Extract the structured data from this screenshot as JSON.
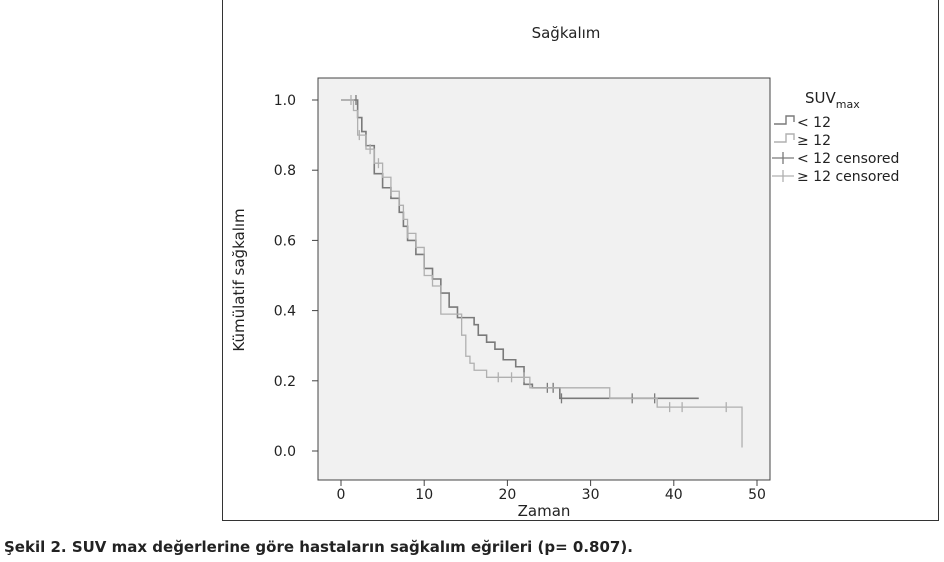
{
  "chart_data": {
    "type": "line",
    "subtype": "kaplan-meier",
    "title": "Sağkalım",
    "xlabel": "Zaman",
    "ylabel": "Kümülatif sağkalım",
    "xlim": [
      0,
      50
    ],
    "ylim": [
      0,
      1.0
    ],
    "xticks": [
      "0",
      "10",
      "20",
      "30",
      "40",
      "50"
    ],
    "yticks": [
      "0.0",
      "0.2",
      "0.4",
      "0.6",
      "0.8",
      "1.0"
    ],
    "legend": {
      "title": "SUV",
      "title_sub": "max",
      "placement": "right",
      "entries": [
        "< 12",
        "≥ 12",
        "< 12 censored",
        "≥ 12 censored"
      ]
    },
    "series": [
      {
        "name": "< 12",
        "color": "#7a7a7a",
        "steps": [
          [
            0,
            1.0
          ],
          [
            2,
            0.95
          ],
          [
            2.5,
            0.91
          ],
          [
            3,
            0.87
          ],
          [
            4,
            0.79
          ],
          [
            5,
            0.75
          ],
          [
            6,
            0.72
          ],
          [
            7,
            0.68
          ],
          [
            7.5,
            0.64
          ],
          [
            8,
            0.6
          ],
          [
            9,
            0.56
          ],
          [
            10,
            0.52
          ],
          [
            11,
            0.49
          ],
          [
            12,
            0.45
          ],
          [
            13,
            0.41
          ],
          [
            14,
            0.38
          ],
          [
            16,
            0.36
          ],
          [
            16.5,
            0.33
          ],
          [
            17.5,
            0.31
          ],
          [
            18.5,
            0.29
          ],
          [
            19.5,
            0.26
          ],
          [
            21,
            0.24
          ],
          [
            22,
            0.19
          ],
          [
            23,
            0.18
          ],
          [
            26.3,
            0.15
          ]
        ],
        "end": 43,
        "censored": [
          [
            1.8,
            1.0
          ],
          [
            24.8,
            0.18
          ],
          [
            25.5,
            0.18
          ],
          [
            26.5,
            0.15
          ],
          [
            35,
            0.15
          ],
          [
            37.7,
            0.15
          ]
        ]
      },
      {
        "name": "≥ 12",
        "color": "#b0b0b0",
        "steps": [
          [
            0,
            1.0
          ],
          [
            1.5,
            0.97
          ],
          [
            2,
            0.9
          ],
          [
            3,
            0.86
          ],
          [
            4,
            0.82
          ],
          [
            5,
            0.78
          ],
          [
            6,
            0.74
          ],
          [
            7,
            0.7
          ],
          [
            7.5,
            0.66
          ],
          [
            8,
            0.62
          ],
          [
            9,
            0.58
          ],
          [
            10,
            0.5
          ],
          [
            11,
            0.47
          ],
          [
            12,
            0.39
          ],
          [
            14.5,
            0.33
          ],
          [
            15,
            0.27
          ],
          [
            15.5,
            0.25
          ],
          [
            16,
            0.23
          ],
          [
            17.5,
            0.21
          ],
          [
            22.7,
            0.18
          ],
          [
            32.3,
            0.15
          ],
          [
            38,
            0.125
          ],
          [
            48.2,
            0.01
          ]
        ],
        "end": 48.2,
        "censored": [
          [
            1.2,
            1.0
          ],
          [
            2.2,
            0.9
          ],
          [
            3.5,
            0.86
          ],
          [
            4.5,
            0.82
          ],
          [
            6,
            0.74
          ],
          [
            8,
            0.62
          ],
          [
            18.9,
            0.21
          ],
          [
            20.5,
            0.21
          ],
          [
            22,
            0.21
          ],
          [
            39.5,
            0.125
          ],
          [
            41,
            0.125
          ],
          [
            46.3,
            0.125
          ]
        ]
      }
    ]
  },
  "caption": "Şekil 2. SUV max değerlerine göre hastaların sağkalım eğrileri (p= 0.807)."
}
